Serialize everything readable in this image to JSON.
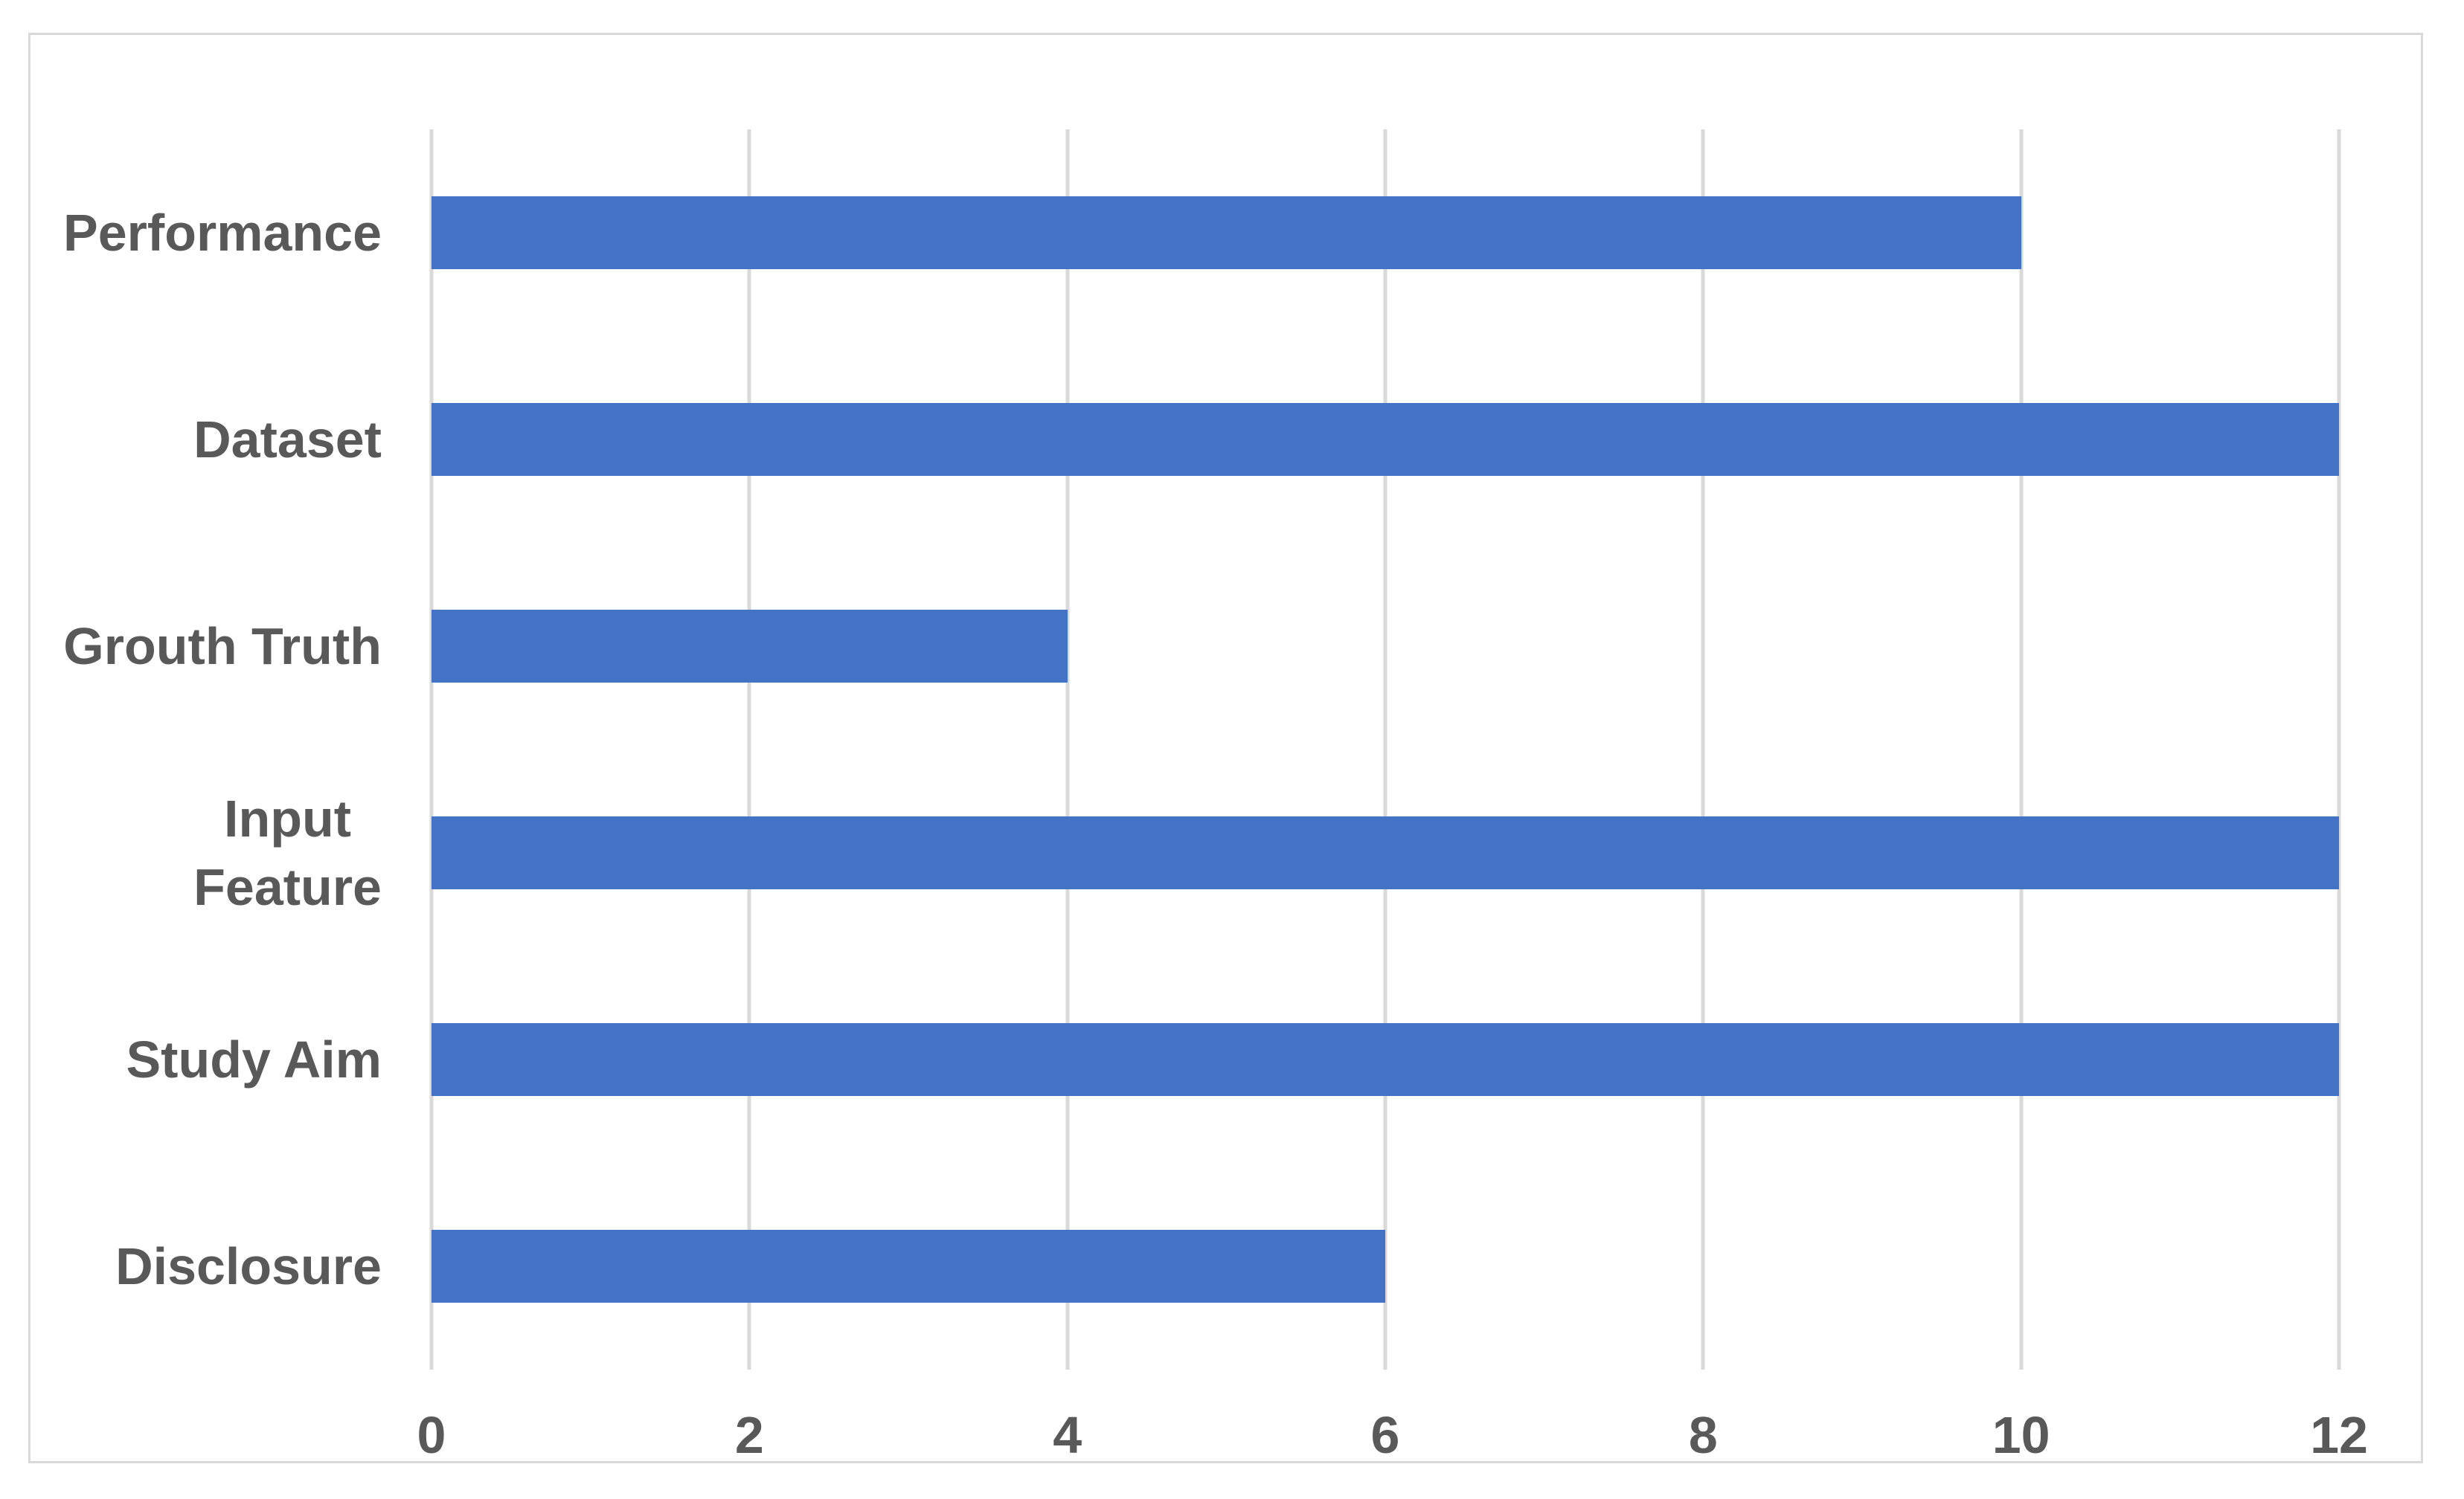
{
  "chart_data": {
    "type": "bar",
    "orientation": "horizontal",
    "title": "",
    "xlabel": "",
    "ylabel": "",
    "categories": [
      "Performance",
      "Dataset",
      "Grouth Truth",
      "Input Feature",
      "Study Aim",
      "Disclosure"
    ],
    "category_display_lines": [
      [
        "Performance"
      ],
      [
        "Dataset"
      ],
      [
        "Grouth Truth"
      ],
      [
        "Input",
        "Feature"
      ],
      [
        "Study Aim"
      ],
      [
        "Disclosure"
      ]
    ],
    "values": [
      10,
      12,
      4,
      12,
      12,
      6
    ],
    "xlim": [
      0,
      12
    ],
    "xticks": [
      0,
      2,
      4,
      6,
      8,
      10,
      12
    ],
    "grid": "vertical-gridlines-on",
    "legend": "none",
    "bar_color": "#4472C4",
    "text_color": "#595959",
    "grid_color": "#D9D9D9",
    "frame_color": "#D9D9D9",
    "background_color": "#FFFFFF"
  }
}
